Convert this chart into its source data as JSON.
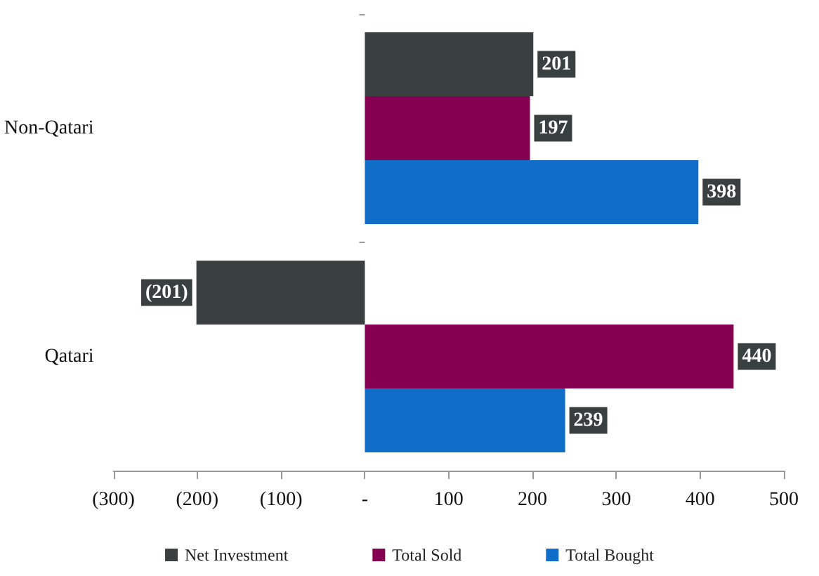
{
  "chart_data": {
    "type": "bar",
    "orientation": "horizontal",
    "categories": [
      "Non-Qatari",
      "Qatari"
    ],
    "series": [
      {
        "name": "Net Investment",
        "color": "#3a3f3f",
        "values": [
          201,
          -201
        ],
        "value_labels": [
          "201",
          "(201)"
        ]
      },
      {
        "name": "Total Sold",
        "color": "#850050",
        "values": [
          197,
          440
        ],
        "value_labels": [
          "197",
          "440"
        ]
      },
      {
        "name": "Total Bought",
        "color": "#116ec8",
        "values": [
          398,
          239
        ],
        "value_labels": [
          "398",
          "239"
        ]
      }
    ],
    "xlim": [
      -300,
      500
    ],
    "xticks": [
      {
        "value": -300,
        "label": "(300)"
      },
      {
        "value": -200,
        "label": "(200)"
      },
      {
        "value": -100,
        "label": "(100)"
      },
      {
        "value": 0,
        "label": "-"
      },
      100,
      200,
      300,
      400,
      500
    ],
    "legend": "bottom",
    "grid": false
  }
}
